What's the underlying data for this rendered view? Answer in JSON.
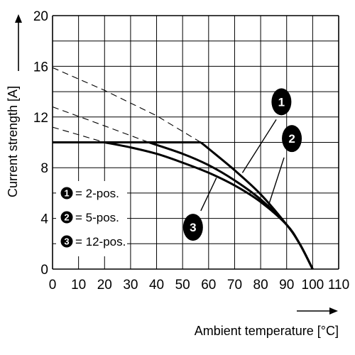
{
  "chart_data": {
    "type": "line",
    "xlabel": "Ambient temperature [°C]",
    "ylabel": "Current strength [A]",
    "xlim": [
      0,
      110
    ],
    "ylim": [
      0,
      20
    ],
    "x_ticks": [
      0,
      10,
      20,
      30,
      40,
      50,
      60,
      70,
      80,
      90,
      100,
      110
    ],
    "y_ticks": [
      0,
      4,
      8,
      12,
      16,
      20
    ],
    "x_grid_step": 10,
    "y_grid_step": 2,
    "grid": true,
    "series": [
      {
        "name": "2-pos.",
        "marker": "1",
        "plateau": {
          "x": [
            0,
            57
          ],
          "y": [
            10,
            10
          ]
        },
        "curve": {
          "x": [
            57,
            60,
            70,
            80,
            90,
            95,
            100
          ],
          "y": [
            10,
            9.5,
            7.8,
            5.9,
            3.5,
            2,
            0
          ]
        },
        "extrapolation": {
          "x": [
            0,
            20,
            40,
            57
          ],
          "y": [
            15.9,
            14.1,
            12.1,
            10
          ]
        }
      },
      {
        "name": "5-pos.",
        "marker": "2",
        "plateau": {
          "x": [
            0,
            37
          ],
          "y": [
            10,
            10
          ]
        },
        "curve": {
          "x": [
            37,
            50,
            60,
            70,
            80,
            90,
            95,
            100
          ],
          "y": [
            10,
            9.1,
            8.2,
            7,
            5.5,
            3.5,
            2,
            0
          ]
        },
        "extrapolation": {
          "x": [
            0,
            20,
            37
          ],
          "y": [
            12.8,
            11.3,
            10
          ]
        }
      },
      {
        "name": "12-pos.",
        "marker": "3",
        "plateau": {
          "x": [
            0,
            20
          ],
          "y": [
            10,
            10
          ]
        },
        "curve": {
          "x": [
            20,
            30,
            40,
            50,
            60,
            70,
            80,
            90,
            95,
            100
          ],
          "y": [
            10,
            9.6,
            9.1,
            8.4,
            7.6,
            6.6,
            5.3,
            3.5,
            2,
            0
          ]
        },
        "extrapolation": {
          "x": [
            0,
            20
          ],
          "y": [
            11.2,
            10
          ]
        }
      }
    ],
    "legend": {
      "placement": "bottom-left",
      "entries": [
        {
          "marker": "1",
          "label": "= 2-pos."
        },
        {
          "marker": "2",
          "label": "= 5-pos."
        },
        {
          "marker": "3",
          "label": "= 12-pos."
        }
      ]
    },
    "callouts": [
      {
        "marker": "1",
        "series": "2-pos.",
        "anchor": {
          "x": 72,
          "y": 7.8
        }
      },
      {
        "marker": "2",
        "series": "5-pos.",
        "anchor": {
          "x": 84,
          "y": 4.8
        }
      },
      {
        "marker": "3",
        "series": "12-pos.",
        "anchor": {
          "x": 62,
          "y": 7.5
        }
      }
    ],
    "colors": {
      "line": "#000000",
      "grid": "#000000",
      "background": "#ffffff"
    }
  }
}
